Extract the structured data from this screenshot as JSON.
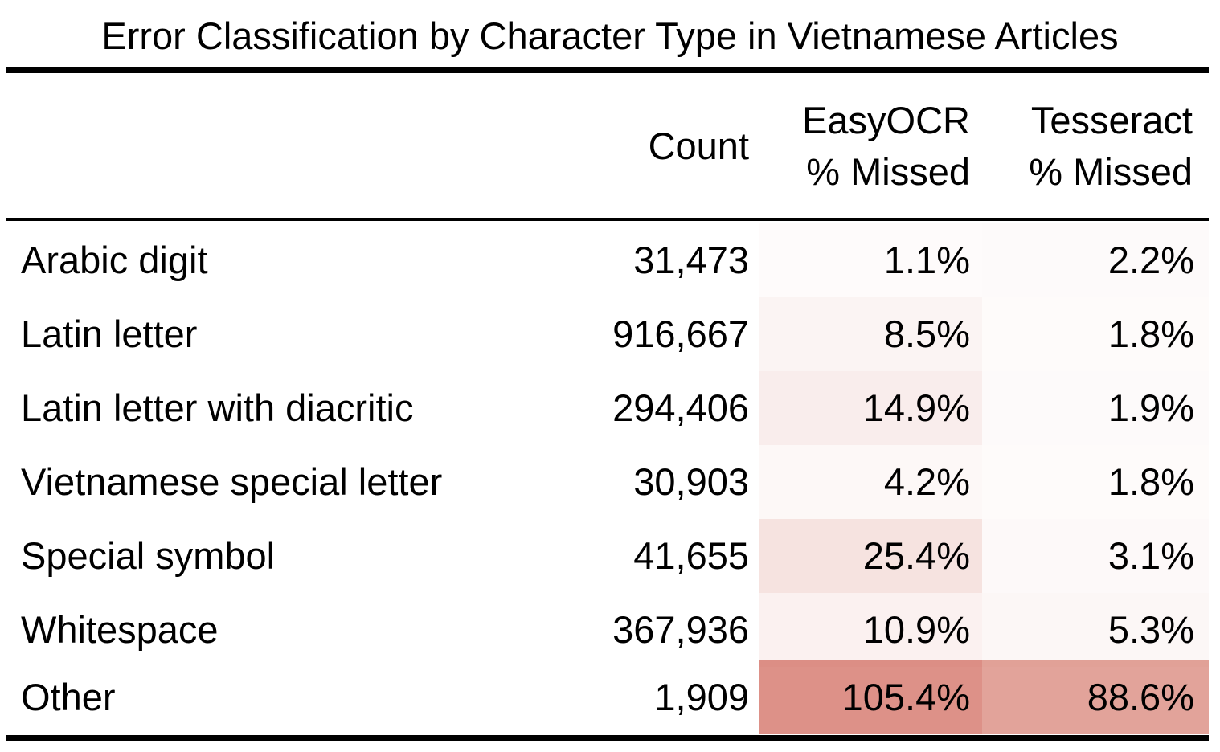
{
  "chart_data": {
    "type": "table",
    "title": "Error Classification by Character Type in Vietnamese Articles",
    "columns": [
      {
        "key": "count",
        "lines": [
          "Count"
        ]
      },
      {
        "key": "easyocr",
        "lines": [
          "EasyOCR",
          "% Missed"
        ]
      },
      {
        "key": "tesseract",
        "lines": [
          "Tesseract",
          "% Missed"
        ]
      }
    ],
    "rows": [
      {
        "label": "Arabic digit",
        "count": "31,473",
        "easyocr": "1.1%",
        "tesseract": "2.2%",
        "easyocr_value": 1.1,
        "tesseract_value": 2.2
      },
      {
        "label": "Latin letter",
        "count": "916,667",
        "easyocr": "8.5%",
        "tesseract": "1.8%",
        "easyocr_value": 8.5,
        "tesseract_value": 1.8
      },
      {
        "label": "Latin letter with diacritic",
        "count": "294,406",
        "easyocr": "14.9%",
        "tesseract": "1.9%",
        "easyocr_value": 14.9,
        "tesseract_value": 1.9
      },
      {
        "label": "Vietnamese special letter",
        "count": "30,903",
        "easyocr": "4.2%",
        "tesseract": "1.8%",
        "easyocr_value": 4.2,
        "tesseract_value": 1.8
      },
      {
        "label": "Special symbol",
        "count": "41,655",
        "easyocr": "25.4%",
        "tesseract": "3.1%",
        "easyocr_value": 25.4,
        "tesseract_value": 3.1
      },
      {
        "label": "Whitespace",
        "count": "367,936",
        "easyocr": "10.9%",
        "tesseract": "5.3%",
        "easyocr_value": 10.9,
        "tesseract_value": 5.3
      },
      {
        "label": "Other",
        "count": "1,909",
        "easyocr": "105.4%",
        "tesseract": "88.6%",
        "easyocr_value": 105.4,
        "tesseract_value": 88.6
      }
    ],
    "heat_color": "#d4766a",
    "heat_max": 105.4
  }
}
